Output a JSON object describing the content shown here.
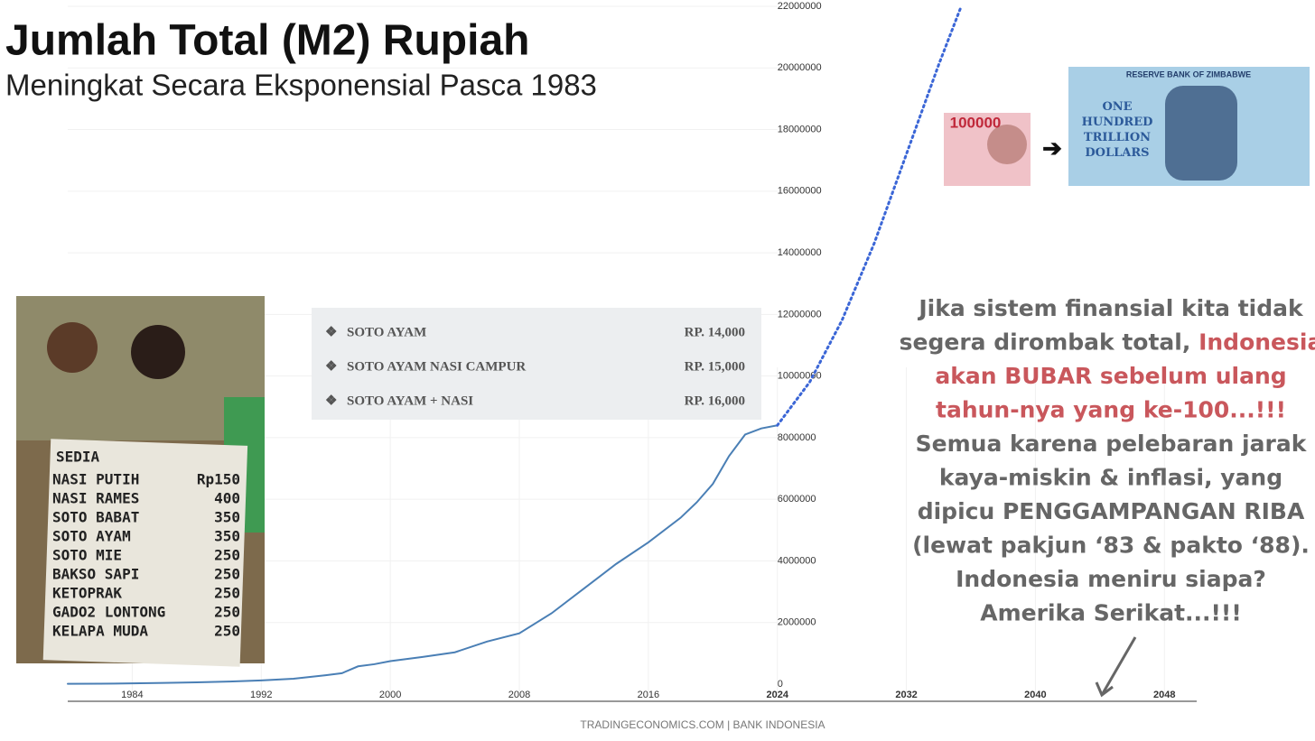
{
  "chart_data": {
    "type": "line",
    "title": "Jumlah Total (M2) Rupiah",
    "subtitle": "Meningkat Secara Eksponensial Pasca 1983",
    "source": "TRADINGECONOMICS.COM | BANK INDONESIA",
    "xlim": [
      1980,
      2050
    ],
    "xticks": [
      1984,
      1992,
      2000,
      2008,
      2016,
      2024,
      2032,
      2040,
      2048
    ],
    "ylim": [
      0,
      22000000
    ],
    "yticks": [
      0,
      2000000,
      4000000,
      6000000,
      8000000,
      10000000,
      12000000,
      14000000,
      16000000,
      18000000,
      20000000,
      22000000
    ],
    "grid": true,
    "series": [
      {
        "color": "#4a7fb5",
        "style": "solid",
        "x": [
          1980,
          1982,
          1984,
          1986,
          1988,
          1990,
          1992,
          1994,
          1996,
          1997,
          1998,
          1999,
          2000,
          2002,
          2004,
          2006,
          2008,
          2010,
          2012,
          2014,
          2016,
          2018,
          2019,
          2020,
          2021,
          2022,
          2023,
          2024
        ],
        "values": [
          10000,
          15000,
          25000,
          40000,
          60000,
          84000,
          120000,
          175000,
          290000,
          355000,
          578000,
          646000,
          747000,
          883000,
          1033000,
          1383000,
          1650000,
          2300000,
          3100000,
          3900000,
          4600000,
          5400000,
          5900000,
          6500000,
          7400000,
          8100000,
          8300000,
          8400000
        ]
      },
      {
        "color": "#3b66d6",
        "style": "dotted",
        "x": [
          2024,
          2026,
          2028,
          2030,
          2032,
          2034,
          2035.4
        ],
        "values": [
          8400000,
          9800000,
          11800000,
          14300000,
          17200000,
          20100000,
          22000000
        ]
      }
    ]
  },
  "menu": [
    {
      "item": "SOTO AYAM",
      "price": "RP. 14,000"
    },
    {
      "item": "SOTO AYAM NASI CAMPUR",
      "price": "RP. 15,000"
    },
    {
      "item": "SOTO AYAM + NASI",
      "price": "RP. 16,000"
    }
  ],
  "sign": {
    "heading": "SEDIA",
    "items": [
      [
        "NASI PUTIH",
        "Rp150"
      ],
      [
        "NASI RAMES",
        "400"
      ],
      [
        "SOTO BABAT",
        "350"
      ],
      [
        "SOTO AYAM",
        "350"
      ],
      [
        "SOTO MIE",
        "250"
      ],
      [
        "BAKSO SAPI",
        "250"
      ],
      [
        "KETOPRAK",
        "250"
      ],
      [
        "GADO2 LONTONG",
        "250"
      ],
      [
        "KELAPA MUDA",
        "250"
      ]
    ]
  },
  "banknotes": {
    "rupiah": "100000",
    "zimbabwe_bank": "RESERVE BANK OF ZIMBABWE",
    "zimbabwe_value": "ONE HUNDRED TRILLION DOLLARS"
  },
  "annotation": [
    [
      {
        "text": "Jika sistem finansial kita tidak",
        "color": "#666666"
      }
    ],
    [
      {
        "text": "segera dirombak total, ",
        "color": "#666666"
      },
      {
        "text": "Indonesia",
        "color": "#c9575c"
      }
    ],
    [
      {
        "text": "akan BUBAR sebelum ulang",
        "color": "#c9575c"
      }
    ],
    [
      {
        "text": "tahun-nya yang ke-100...!!!",
        "color": "#c9575c"
      }
    ],
    [
      {
        "text": "Semua karena pelebaran jarak",
        "color": "#666666"
      }
    ],
    [
      {
        "text": "kaya-miskin & inflasi, yang",
        "color": "#666666"
      }
    ],
    [
      {
        "text": "dipicu PENGGAMPANGAN RIBA",
        "color": "#666666"
      }
    ],
    [
      {
        "text": "(lewat pakjun ‘83 & pakto ‘88).",
        "color": "#666666"
      }
    ],
    [
      {
        "text": "Indonesia meniru siapa?",
        "color": "#666666"
      }
    ],
    [
      {
        "text": "Amerika Serikat...!!!",
        "color": "#666666"
      }
    ]
  ]
}
